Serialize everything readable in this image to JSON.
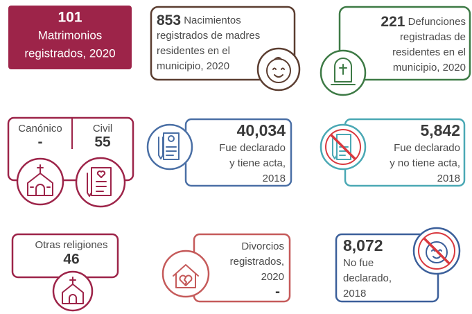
{
  "marriages": {
    "number": "101",
    "lines": [
      "Matrimonios",
      "registrados, 2020"
    ]
  },
  "births": {
    "number": "853",
    "lines": [
      "Nacimientos",
      "registrados de madres",
      "residentes en el",
      "municipio, 2020"
    ]
  },
  "deaths": {
    "number": "221",
    "lines": [
      "Defunciones",
      "registradas de",
      "residentes en el",
      "municipio, 2020"
    ]
  },
  "canonical": {
    "label": "Canónico",
    "value": "-"
  },
  "civil": {
    "label": "Civil",
    "value": "55"
  },
  "registered_with_act": {
    "number": "40,034",
    "lines": [
      "Fue declarado",
      "y tiene acta,",
      "2018"
    ]
  },
  "registered_without_act": {
    "number": "5,842",
    "lines": [
      "Fue declarado",
      "y no tiene acta,",
      "2018"
    ]
  },
  "other_religions": {
    "label": "Otras religiones",
    "value": "46"
  },
  "divorces": {
    "lines": [
      "Divorcios",
      "registrados,",
      "2020"
    ],
    "value": "-"
  },
  "undeclared": {
    "number": "8,072",
    "lines": [
      "No fue",
      "declarado,",
      "2018"
    ]
  }
}
